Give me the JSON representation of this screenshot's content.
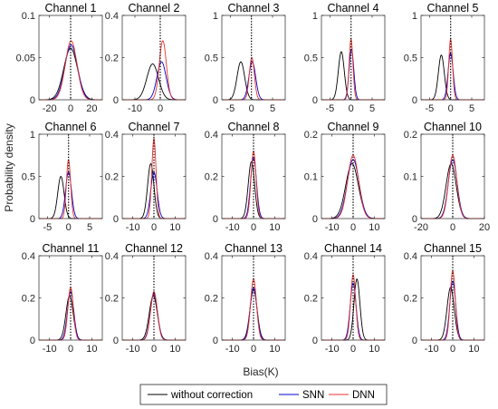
{
  "chart_data": {
    "type": "line",
    "xlabel": "Bias(K)",
    "ylabel": "Probability density",
    "legend": {
      "placement": "bottom",
      "entries": [
        {
          "name": "without correction",
          "color": "#000000"
        },
        {
          "name": "SNN",
          "color": "#0000cc"
        },
        {
          "name": "DNN",
          "color": "#e8322d"
        }
      ]
    },
    "panels": [
      {
        "title": "Channel 1",
        "xlim": [
          -30,
          30
        ],
        "xticks": [
          -20,
          0,
          20
        ],
        "ylim": [
          0,
          0.1
        ],
        "yticks": [
          0,
          0.05,
          0.1
        ],
        "ytick_labels": [
          "0",
          "0.05",
          "0.1"
        ],
        "series": [
          {
            "name": "without correction",
            "mu": 0,
            "sigma": 6.5,
            "peak": 0.061
          },
          {
            "name": "SNN",
            "mu": 0.5,
            "sigma": 6,
            "peak": 0.065
          },
          {
            "name": "DNN",
            "mu": 0.5,
            "sigma": 5.5,
            "peak": 0.07
          }
        ]
      },
      {
        "title": "Channel 2",
        "xlim": [
          -15,
          10
        ],
        "xticks": [
          -10,
          0
        ],
        "ylim": [
          0,
          0.4
        ],
        "yticks": [
          0,
          0.2,
          0.4
        ],
        "ytick_labels": [
          "0",
          "0.2",
          "0.4"
        ],
        "series": [
          {
            "name": "without correction",
            "mu": -3,
            "sigma": 2.3,
            "peak": 0.17
          },
          {
            "name": "SNN",
            "mu": 0.5,
            "sigma": 1.8,
            "peak": 0.18
          },
          {
            "name": "DNN",
            "mu": 1,
            "sigma": 1.4,
            "peak": 0.28
          }
        ]
      },
      {
        "title": "Channel 3",
        "xlim": [
          -7,
          8
        ],
        "xticks": [
          -5,
          0,
          5
        ],
        "ylim": [
          0,
          1
        ],
        "yticks": [
          0,
          0.5,
          1
        ],
        "ytick_labels": [
          "0",
          "0.5",
          "1"
        ],
        "series": [
          {
            "name": "without correction",
            "mu": -2.5,
            "sigma": 0.9,
            "peak": 0.45
          },
          {
            "name": "SNN",
            "mu": 0.2,
            "sigma": 0.8,
            "peak": 0.45
          },
          {
            "name": "DNN",
            "mu": 0.1,
            "sigma": 0.6,
            "peak": 0.5
          }
        ]
      },
      {
        "title": "Channel 4",
        "xlim": [
          -7,
          8
        ],
        "xticks": [
          -5,
          0,
          5
        ],
        "ylim": [
          0,
          1
        ],
        "yticks": [
          0,
          0.5,
          1
        ],
        "ytick_labels": [
          "0",
          "0.5",
          "1"
        ],
        "series": [
          {
            "name": "without correction",
            "mu": -2.3,
            "sigma": 0.7,
            "peak": 0.57
          },
          {
            "name": "SNN",
            "mu": 0.1,
            "sigma": 0.55,
            "peak": 0.6
          },
          {
            "name": "DNN",
            "mu": 0,
            "sigma": 0.45,
            "peak": 0.72
          }
        ]
      },
      {
        "title": "Channel 5",
        "xlim": [
          -7,
          8
        ],
        "xticks": [
          -5,
          0,
          5
        ],
        "ylim": [
          0,
          1
        ],
        "yticks": [
          0,
          0.5,
          1
        ],
        "ytick_labels": [
          "0",
          "0.5",
          "1"
        ],
        "series": [
          {
            "name": "without correction",
            "mu": -2.2,
            "sigma": 0.7,
            "peak": 0.53
          },
          {
            "name": "SNN",
            "mu": 0,
            "sigma": 0.6,
            "peak": 0.55
          },
          {
            "name": "DNN",
            "mu": 0,
            "sigma": 0.45,
            "peak": 0.72
          }
        ]
      },
      {
        "title": "Channel 6",
        "xlim": [
          -7,
          8
        ],
        "xticks": [
          -5,
          0,
          5
        ],
        "ylim": [
          0,
          1
        ],
        "yticks": [
          0,
          0.5,
          1
        ],
        "ytick_labels": [
          "0",
          "0.5",
          "1"
        ],
        "series": [
          {
            "name": "without correction",
            "mu": -1.8,
            "sigma": 0.75,
            "peak": 0.5
          },
          {
            "name": "SNN",
            "mu": 0,
            "sigma": 0.7,
            "peak": 0.55
          },
          {
            "name": "DNN",
            "mu": 0,
            "sigma": 0.5,
            "peak": 0.7
          }
        ]
      },
      {
        "title": "Channel 7",
        "xlim": [
          -15,
          15
        ],
        "xticks": [
          -10,
          0,
          10
        ],
        "ylim": [
          0,
          0.4
        ],
        "yticks": [
          0,
          0.2,
          0.4
        ],
        "ytick_labels": [
          "0",
          "0.2",
          "0.4"
        ],
        "series": [
          {
            "name": "without correction",
            "mu": -1.5,
            "sigma": 1.5,
            "peak": 0.26
          },
          {
            "name": "SNN",
            "mu": 0,
            "sigma": 1.5,
            "peak": 0.22
          },
          {
            "name": "DNN",
            "mu": 0,
            "sigma": 1,
            "peak": 0.38
          }
        ]
      },
      {
        "title": "Channel 8",
        "xlim": [
          -15,
          15
        ],
        "xticks": [
          -10,
          0,
          10
        ],
        "ylim": [
          0,
          0.4
        ],
        "yticks": [
          0,
          0.2,
          0.4
        ],
        "ytick_labels": [
          "0",
          "0.2",
          "0.4"
        ],
        "series": [
          {
            "name": "without correction",
            "mu": -1,
            "sigma": 1.5,
            "peak": 0.27
          },
          {
            "name": "SNN",
            "mu": 0,
            "sigma": 1.4,
            "peak": 0.29
          },
          {
            "name": "DNN",
            "mu": 0,
            "sigma": 1.2,
            "peak": 0.32
          }
        ]
      },
      {
        "title": "Channel 9",
        "xlim": [
          -15,
          15
        ],
        "xticks": [
          -10,
          0,
          10
        ],
        "ylim": [
          0,
          0.2
        ],
        "yticks": [
          0,
          0.1,
          0.2
        ],
        "ytick_labels": [
          "0",
          "0.1",
          "0.2"
        ],
        "series": [
          {
            "name": "without correction",
            "mu": -0.5,
            "sigma": 3,
            "peak": 0.13
          },
          {
            "name": "SNN",
            "mu": 0,
            "sigma": 2.8,
            "peak": 0.14
          },
          {
            "name": "DNN",
            "mu": 0,
            "sigma": 2.6,
            "peak": 0.15
          }
        ]
      },
      {
        "title": "Channel 10",
        "xlim": [
          -20,
          20
        ],
        "xticks": [
          -20,
          0,
          20
        ],
        "ylim": [
          0,
          0.2
        ],
        "yticks": [
          0,
          0.1,
          0.2
        ],
        "ytick_labels": [
          "0",
          "0.1",
          "0.2"
        ],
        "series": [
          {
            "name": "without correction",
            "mu": -1,
            "sigma": 3.2,
            "peak": 0.13
          },
          {
            "name": "SNN",
            "mu": 0,
            "sigma": 2.8,
            "peak": 0.14
          },
          {
            "name": "DNN",
            "mu": 0,
            "sigma": 2.6,
            "peak": 0.15
          }
        ]
      },
      {
        "title": "Channel 11",
        "xlim": [
          -15,
          15
        ],
        "xticks": [
          -10,
          0,
          10
        ],
        "ylim": [
          0,
          0.4
        ],
        "yticks": [
          0,
          0.2,
          0.4
        ],
        "ytick_labels": [
          "0",
          "0.2",
          "0.4"
        ],
        "series": [
          {
            "name": "without correction",
            "mu": -0.5,
            "sigma": 1.7,
            "peak": 0.21
          },
          {
            "name": "SNN",
            "mu": 0,
            "sigma": 1.5,
            "peak": 0.23
          },
          {
            "name": "DNN",
            "mu": 0,
            "sigma": 1.3,
            "peak": 0.25
          }
        ]
      },
      {
        "title": "Channel 12",
        "xlim": [
          -15,
          15
        ],
        "xticks": [
          -10,
          0,
          10
        ],
        "ylim": [
          0,
          0.4
        ],
        "yticks": [
          0,
          0.2,
          0.4
        ],
        "ytick_labels": [
          "0",
          "0.2",
          "0.4"
        ],
        "series": [
          {
            "name": "without correction",
            "mu": -0.3,
            "sigma": 1.9,
            "peak": 0.21
          },
          {
            "name": "SNN",
            "mu": 0,
            "sigma": 1.7,
            "peak": 0.22
          },
          {
            "name": "DNN",
            "mu": 0,
            "sigma": 1.6,
            "peak": 0.23
          }
        ]
      },
      {
        "title": "Channel 13",
        "xlim": [
          -15,
          15
        ],
        "xticks": [
          -10,
          0,
          10
        ],
        "ylim": [
          0,
          0.4
        ],
        "yticks": [
          0,
          0.2,
          0.4
        ],
        "ytick_labels": [
          "0",
          "0.2",
          "0.4"
        ],
        "series": [
          {
            "name": "without correction",
            "mu": 0,
            "sigma": 1.7,
            "peak": 0.24
          },
          {
            "name": "SNN",
            "mu": 0,
            "sigma": 1.6,
            "peak": 0.25
          },
          {
            "name": "DNN",
            "mu": 0,
            "sigma": 1.4,
            "peak": 0.29
          }
        ]
      },
      {
        "title": "Channel 14",
        "xlim": [
          -15,
          15
        ],
        "xticks": [
          -10,
          0,
          10
        ],
        "ylim": [
          0,
          0.4
        ],
        "yticks": [
          0,
          0.2,
          0.4
        ],
        "ytick_labels": [
          "0",
          "0.2",
          "0.4"
        ],
        "series": [
          {
            "name": "without correction",
            "mu": 1.8,
            "sigma": 1.4,
            "peak": 0.29
          },
          {
            "name": "SNN",
            "mu": 0,
            "sigma": 1.4,
            "peak": 0.27
          },
          {
            "name": "DNN",
            "mu": 0,
            "sigma": 1.2,
            "peak": 0.31
          }
        ]
      },
      {
        "title": "Channel 15",
        "xlim": [
          -15,
          15
        ],
        "xticks": [
          -10,
          0,
          10
        ],
        "ylim": [
          0,
          0.4
        ],
        "yticks": [
          0,
          0.2,
          0.4
        ],
        "ytick_labels": [
          "0",
          "0.2",
          "0.4"
        ],
        "series": [
          {
            "name": "without correction",
            "mu": -1,
            "sigma": 1.7,
            "peak": 0.25
          },
          {
            "name": "SNN",
            "mu": 0,
            "sigma": 1.4,
            "peak": 0.28
          },
          {
            "name": "DNN",
            "mu": 0,
            "sigma": 1.2,
            "peak": 0.33
          }
        ]
      }
    ]
  }
}
